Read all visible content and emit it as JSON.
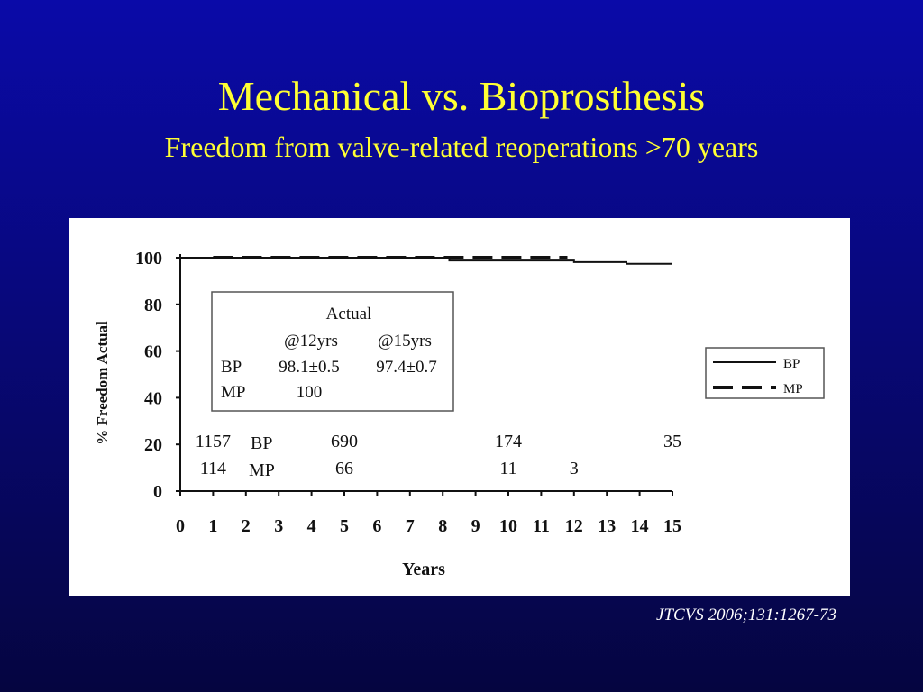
{
  "slide": {
    "title": "Mechanical vs. Bioprosthesis",
    "subtitle": "Freedom from valve-related reoperations >70 years",
    "citation": "JTCVS 2006;131:1267-73",
    "colors": {
      "background": "#0a0aa8",
      "title": "#ffff33",
      "citation": "#ffffff",
      "panel": "#ffffff"
    }
  },
  "chart_data": {
    "type": "line",
    "xlabel": "Years",
    "ylabel": "% Freedom Actual",
    "xlim": [
      0,
      15
    ],
    "ylim": [
      0,
      100
    ],
    "x_ticks": [
      0,
      1,
      2,
      3,
      4,
      5,
      6,
      7,
      8,
      9,
      10,
      11,
      12,
      13,
      14,
      15
    ],
    "y_ticks": [
      0,
      20,
      40,
      60,
      80,
      100
    ],
    "grid": false,
    "legend": {
      "position": "right",
      "entries": [
        "BP",
        "MP"
      ]
    },
    "series": [
      {
        "name": "BP",
        "style": "solid",
        "x": [
          0,
          1,
          8.2,
          8.2,
          12,
          12,
          13.6,
          13.6,
          15
        ],
        "y": [
          100,
          100,
          100,
          98.8,
          98.8,
          98.1,
          98.1,
          97.4,
          97.4
        ]
      },
      {
        "name": "MP",
        "style": "dashed",
        "x": [
          1,
          11.8
        ],
        "y": [
          100,
          100
        ]
      }
    ],
    "actual_box": {
      "title": "Actual",
      "columns": [
        "@12yrs",
        "@15yrs"
      ],
      "rows": [
        {
          "label": "BP",
          "values": [
            "98.1±0.5",
            "97.4±0.7"
          ]
        },
        {
          "label": "MP",
          "values": [
            "100",
            ""
          ]
        }
      ]
    },
    "at_risk": {
      "label_bp": "BP",
      "label_mp": "MP",
      "bp": [
        {
          "year": 1,
          "value": "1157"
        },
        {
          "year": 5,
          "value": "690"
        },
        {
          "year": 10,
          "value": "174"
        },
        {
          "year": 15,
          "value": "35"
        }
      ],
      "mp": [
        {
          "year": 1,
          "value": "114"
        },
        {
          "year": 5,
          "value": "66"
        },
        {
          "year": 10,
          "value": "11"
        },
        {
          "year": 12,
          "value": "3"
        }
      ]
    }
  }
}
